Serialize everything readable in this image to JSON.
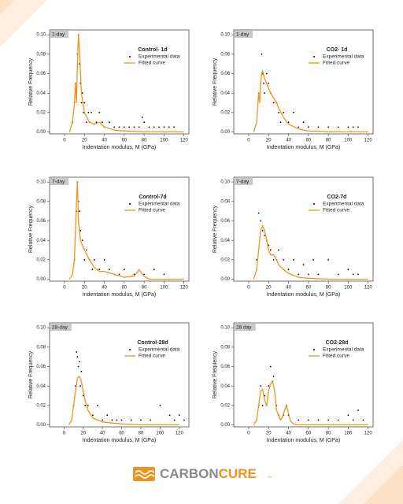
{
  "chart_data": [
    {
      "type": "scatter-line",
      "tag": "1-day",
      "title": "Control- 1d",
      "xlabel": "Indentation modulus, M (GPa)",
      "ylabel": "Relative Frequency",
      "xlim": [
        -15,
        125
      ],
      "ylim": [
        -0.002,
        0.105
      ],
      "xticks": [
        0,
        20,
        40,
        60,
        80,
        100,
        120
      ],
      "yticks": [
        {
          "value": 0,
          "label": "0.00"
        },
        {
          "value": 0.02,
          "label": "0.02"
        },
        {
          "value": 0.04,
          "label": "0.04"
        },
        {
          "value": 0.06,
          "label": "0.06"
        },
        {
          "value": 0.08,
          "label": "0.08"
        },
        {
          "value": 0.1,
          "label": "0.10"
        }
      ],
      "series": [
        {
          "name": "Experimental data",
          "color": "#000000",
          "mode": "markers",
          "x": [
            8,
            10,
            11,
            12,
            13,
            14,
            15,
            16,
            17,
            18,
            19,
            20,
            22,
            24,
            25,
            27,
            30,
            32,
            35,
            38,
            40,
            45,
            50,
            55,
            60,
            65,
            70,
            75,
            78,
            80,
            85,
            90,
            95,
            100,
            105,
            110
          ],
          "values": [
            0.01,
            0.03,
            0.05,
            0.04,
            0.08,
            0.1,
            0.07,
            0.05,
            0.03,
            0.04,
            0.02,
            0.03,
            0.01,
            0.02,
            0.01,
            0.02,
            0.008,
            0.01,
            0.02,
            0.01,
            0.005,
            0.01,
            0.005,
            0.005,
            0.005,
            0.005,
            0.005,
            0.005,
            0.015,
            0.01,
            0.005,
            0.005,
            0.005,
            0.005,
            0.005,
            0.005
          ]
        },
        {
          "name": "Fitted curve",
          "color": "#f0931e",
          "mode": "line",
          "x": [
            5,
            8,
            10,
            11,
            12,
            13,
            14,
            15,
            17,
            20,
            25,
            30,
            35,
            40,
            50,
            60,
            80,
            100,
            120
          ],
          "values": [
            0,
            0.01,
            0.03,
            0.05,
            0.03,
            0.07,
            0.1,
            0.085,
            0.04,
            0.02,
            0.01,
            0.008,
            0.01,
            0.005,
            0.002,
            0.001,
            0,
            0,
            0
          ]
        }
      ]
    },
    {
      "type": "scatter-line",
      "tag": "1-day",
      "title": "CO2- 1d",
      "xlabel": "Indentation modulus, M (GPa)",
      "ylabel": "Relative Frequency",
      "xlim": [
        -15,
        125
      ],
      "ylim": [
        -0.002,
        0.105
      ],
      "xticks": [
        0,
        20,
        40,
        60,
        80,
        100,
        120
      ],
      "yticks": [
        {
          "value": 0,
          "label": "0.00"
        },
        {
          "value": 0.02,
          "label": "0.02"
        },
        {
          "value": 0.04,
          "label": "0.04"
        },
        {
          "value": 0.06,
          "label": "0.06"
        },
        {
          "value": 0.08,
          "label": "0.08"
        },
        {
          "value": 0.1,
          "label": "0.10"
        }
      ],
      "series": [
        {
          "name": "Experimental data",
          "color": "#000000",
          "mode": "markers",
          "x": [
            10,
            12,
            13,
            14,
            15,
            16,
            18,
            20,
            22,
            25,
            28,
            30,
            32,
            35,
            40,
            45,
            50,
            55,
            60,
            70,
            80,
            90,
            100,
            105,
            110
          ],
          "values": [
            0.04,
            0.05,
            0.08,
            0.06,
            0.05,
            0.04,
            0.06,
            0.05,
            0.04,
            0.03,
            0.03,
            0.02,
            0.01,
            0.02,
            0.01,
            0.02,
            0.005,
            0.01,
            0.005,
            0.005,
            0.005,
            0.005,
            0.005,
            0.005,
            0.005
          ]
        },
        {
          "name": "Fitted curve",
          "color": "#f0931e",
          "mode": "line",
          "x": [
            5,
            8,
            10,
            11,
            12,
            13,
            14,
            16,
            18,
            20,
            22,
            25,
            28,
            30,
            35,
            40,
            50,
            60,
            80,
            100,
            120
          ],
          "values": [
            0,
            0.01,
            0.04,
            0.03,
            0.05,
            0.06,
            0.063,
            0.055,
            0.05,
            0.045,
            0.04,
            0.035,
            0.03,
            0.025,
            0.015,
            0.008,
            0.003,
            0.001,
            0,
            0,
            0
          ]
        }
      ]
    },
    {
      "type": "scatter-line",
      "tag": "7-day",
      "title": "Control-7d",
      "xlabel": "Indentation modulus, M (GPa)",
      "ylabel": "Relative Frequency",
      "xlim": [
        -15,
        125
      ],
      "ylim": [
        -0.002,
        0.105
      ],
      "xticks": [
        0,
        20,
        40,
        60,
        80,
        100,
        120
      ],
      "yticks": [
        {
          "value": 0,
          "label": "0.00"
        },
        {
          "value": 0.02,
          "label": "0.02"
        },
        {
          "value": 0.04,
          "label": "0.04"
        },
        {
          "value": 0.06,
          "label": "0.06"
        },
        {
          "value": 0.08,
          "label": "0.08"
        },
        {
          "value": 0.1,
          "label": "0.10"
        }
      ],
      "series": [
        {
          "name": "Experimental data",
          "color": "#000000",
          "mode": "markers",
          "x": [
            10,
            12,
            13,
            14,
            15,
            16,
            18,
            20,
            22,
            25,
            28,
            30,
            35,
            40,
            45,
            50,
            55,
            60,
            70,
            80,
            90,
            100
          ],
          "values": [
            0.02,
            0.07,
            0.1,
            0.08,
            0.07,
            0.05,
            0.04,
            0.02,
            0.03,
            0.02,
            0.01,
            0.02,
            0.01,
            0.02,
            0.01,
            0.005,
            0.005,
            0.01,
            0.005,
            0.005,
            0.01,
            0.005
          ]
        },
        {
          "name": "Fitted curve",
          "color": "#f0931e",
          "mode": "line",
          "x": [
            5,
            8,
            10,
            12,
            13,
            14,
            16,
            18,
            20,
            25,
            30,
            35,
            40,
            50,
            60,
            70,
            75,
            80,
            85,
            100,
            120
          ],
          "values": [
            0,
            0.005,
            0.02,
            0.08,
            0.1,
            0.06,
            0.04,
            0.035,
            0.03,
            0.02,
            0.012,
            0.008,
            0.008,
            0.005,
            0.002,
            0.003,
            0.01,
            0.003,
            0,
            0,
            0
          ]
        }
      ]
    },
    {
      "type": "scatter-line",
      "tag": "7-day",
      "title": "CO2-7d",
      "xlabel": "Indentation modulus, M (GPa)",
      "ylabel": "Relative Frequency",
      "xlim": [
        -15,
        125
      ],
      "ylim": [
        -0.002,
        0.105
      ],
      "xticks": [
        0,
        20,
        40,
        60,
        80,
        100,
        120
      ],
      "yticks": [
        {
          "value": 0,
          "label": "0.00"
        },
        {
          "value": 0.02,
          "label": "0.02"
        },
        {
          "value": 0.04,
          "label": "0.04"
        },
        {
          "value": 0.06,
          "label": "0.06"
        },
        {
          "value": 0.08,
          "label": "0.08"
        },
        {
          "value": 0.1,
          "label": "0.10"
        }
      ],
      "series": [
        {
          "name": "Experimental data",
          "color": "#000000",
          "mode": "markers",
          "x": [
            8,
            10,
            12,
            14,
            16,
            18,
            20,
            22,
            25,
            28,
            30,
            35,
            40,
            45,
            50,
            55,
            60,
            65,
            70,
            80,
            90,
            100,
            105,
            110
          ],
          "values": [
            0.02,
            0.068,
            0.06,
            0.05,
            0.045,
            0.04,
            0.035,
            0.03,
            0.02,
            0.02,
            0.03,
            0.02,
            0.01,
            0.02,
            0.005,
            0.015,
            0.005,
            0.02,
            0.005,
            0.02,
            0.005,
            0.01,
            0.005,
            0.005
          ]
        },
        {
          "name": "Fitted curve",
          "color": "#f0931e",
          "mode": "line",
          "x": [
            5,
            8,
            10,
            12,
            14,
            16,
            18,
            20,
            22,
            25,
            28,
            30,
            35,
            40,
            45,
            50,
            60,
            80,
            100,
            120
          ],
          "values": [
            0,
            0.01,
            0.03,
            0.05,
            0.055,
            0.05,
            0.04,
            0.03,
            0.025,
            0.025,
            0.02,
            0.015,
            0.01,
            0.006,
            0.004,
            0.002,
            0.001,
            0,
            0,
            0
          ]
        }
      ]
    },
    {
      "type": "scatter-line",
      "tag": "28-day",
      "title": "Control-28d",
      "xlabel": "Indentation modulus, M (GPa)",
      "ylabel": "Relative Frequency",
      "xlim": [
        -15,
        130
      ],
      "ylim": [
        -0.002,
        0.105
      ],
      "xticks": [
        0,
        20,
        40,
        60,
        80,
        100,
        120
      ],
      "yticks": [
        {
          "value": 0,
          "label": "0.00"
        },
        {
          "value": 0.02,
          "label": "0.02"
        },
        {
          "value": 0.04,
          "label": "0.04"
        },
        {
          "value": 0.06,
          "label": "0.06"
        },
        {
          "value": 0.08,
          "label": "0.08"
        },
        {
          "value": 0.1,
          "label": "0.10"
        }
      ],
      "series": [
        {
          "name": "Experimental data",
          "color": "#000000",
          "mode": "markers",
          "x": [
            10,
            12,
            13,
            14,
            15,
            16,
            17,
            18,
            20,
            22,
            25,
            30,
            35,
            40,
            45,
            50,
            55,
            60,
            70,
            80,
            90,
            100,
            110,
            115,
            120,
            125
          ],
          "values": [
            0.02,
            0.04,
            0.075,
            0.07,
            0.06,
            0.065,
            0.04,
            0.055,
            0.03,
            0.02,
            0.02,
            0.01,
            0.02,
            0.005,
            0.01,
            0.005,
            0.005,
            0.005,
            0.005,
            0.005,
            0.005,
            0.02,
            0.01,
            0.005,
            0.01,
            0.005
          ]
        },
        {
          "name": "Fitted curve",
          "color": "#f0931e",
          "mode": "line",
          "x": [
            5,
            8,
            10,
            12,
            14,
            16,
            18,
            20,
            22,
            25,
            30,
            35,
            40,
            50,
            60,
            80,
            100,
            120
          ],
          "values": [
            0,
            0.005,
            0.02,
            0.035,
            0.048,
            0.05,
            0.045,
            0.035,
            0.025,
            0.015,
            0.007,
            0.005,
            0.003,
            0.002,
            0.001,
            0,
            0,
            0
          ]
        }
      ]
    },
    {
      "type": "scatter-line",
      "tag": "28 day",
      "title": "CO2-28d",
      "xlabel": "Indentation modulus, M (GPa)",
      "ylabel": "Relative Frequency",
      "xlim": [
        -15,
        125
      ],
      "ylim": [
        -0.002,
        0.105
      ],
      "xticks": [
        0,
        20,
        40,
        60,
        80,
        100,
        120
      ],
      "yticks": [
        {
          "value": 0,
          "label": "0.00"
        },
        {
          "value": 0.02,
          "label": "0.02"
        },
        {
          "value": 0.04,
          "label": "0.04"
        },
        {
          "value": 0.06,
          "label": "0.06"
        },
        {
          "value": 0.08,
          "label": "0.08"
        },
        {
          "value": 0.1,
          "label": "0.10"
        }
      ],
      "series": [
        {
          "name": "Experimental data",
          "color": "#000000",
          "mode": "markers",
          "x": [
            10,
            12,
            14,
            16,
            18,
            20,
            22,
            24,
            25,
            28,
            30,
            35,
            38,
            40,
            50,
            60,
            70,
            80,
            90,
            100,
            105,
            110,
            115
          ],
          "values": [
            0.02,
            0.04,
            0.02,
            0.03,
            0.02,
            0.04,
            0.06,
            0.045,
            0.05,
            0.02,
            0.01,
            0.01,
            0.02,
            0.01,
            0.005,
            0.005,
            0.005,
            0.005,
            0.005,
            0.01,
            0.005,
            0.015,
            0.005
          ]
        },
        {
          "name": "Fitted curve",
          "color": "#f0931e",
          "mode": "line",
          "x": [
            5,
            8,
            10,
            12,
            14,
            16,
            18,
            20,
            22,
            24,
            26,
            28,
            30,
            32,
            34,
            36,
            38,
            40,
            42,
            45,
            50,
            60,
            80,
            100,
            120
          ],
          "values": [
            0,
            0.005,
            0.02,
            0.035,
            0.037,
            0.025,
            0.02,
            0.035,
            0.042,
            0.045,
            0.035,
            0.015,
            0.01,
            0.005,
            0.008,
            0.015,
            0.02,
            0.012,
            0.004,
            0.001,
            0,
            0,
            0,
            0,
            0
          ]
        }
      ]
    }
  ],
  "logo": {
    "part1": "CARBON",
    "part2": "CURE",
    "mark": "TM"
  }
}
